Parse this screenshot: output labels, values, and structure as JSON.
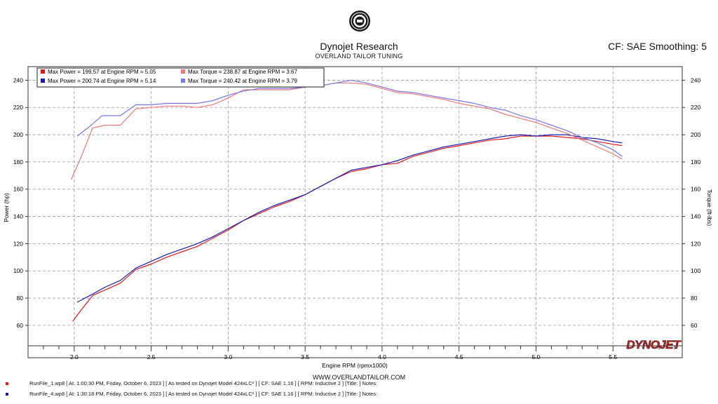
{
  "header": {
    "title": "Dynojet Research",
    "subtitle": "OVERLAND TAILOR TUNING",
    "cf_label": "CF: SAE Smoothing: 5"
  },
  "footer": {
    "url": "WWW.OVERLANDTAILOR.COM",
    "brand": "DYNOJET",
    "runs": [
      {
        "text": "RunFile_1.wp8 [ At: 1:00:30 PM, Friday, October 6, 2023 ] [ As tested on Dynojet Model 424xLC² ] [ CF: SAE 1.16 ] [ RPM: Inductive 2 ] [Title: ]  Notes:",
        "color": "#e01818"
      },
      {
        "text": "RunFile_4.wp8 [ At: 1:30:18 PM, Friday, October 6, 2023 ] [ As tested on Dynojet Model 424xLC² ] [ CF: SAE 1.16 ] [ RPM: Inductive 2 ] [Title: ]  Notes:",
        "color": "#1a1ab8"
      }
    ]
  },
  "colors": {
    "power_run1": "#e01818",
    "power_run2": "#1a1ab8",
    "torque_run1": "#f07878",
    "torque_run2": "#7878e8",
    "grid": "#9a9a9a",
    "brand_red": "#d42020"
  },
  "chart_data": {
    "type": "line",
    "title": "Dynojet Research",
    "subtitle": "OVERLAND TAILOR TUNING",
    "xlabel": "Engine RPM (rpmx1000)",
    "ylabel": "Power (hp)",
    "y2label": "Torque (ft-lbs)",
    "xlim": [
      1.7,
      5.95
    ],
    "ylim": [
      45,
      250
    ],
    "y2lim": [
      45,
      250
    ],
    "xticks": [
      "2.0",
      "2.5",
      "3.0",
      "3.5",
      "4.0",
      "4.5",
      "5.0",
      "5.5"
    ],
    "yticks": [
      "60",
      "80",
      "100",
      "120",
      "140",
      "160",
      "180",
      "200",
      "220",
      "240"
    ],
    "grid": true,
    "legend": {
      "position": "top-left",
      "entries": [
        {
          "label": "Max Power = 199.57 at Engine RPM = 5.05",
          "color": "#e01818"
        },
        {
          "label": "Max Torque = 238.87 at Engine RPM = 3.67",
          "color": "#f07878"
        },
        {
          "label": "Max Power = 200.74 at Engine RPM = 5.14",
          "color": "#1a1ab8"
        },
        {
          "label": "Max Torque = 240.42 at Engine RPM = 3.79",
          "color": "#7878e8"
        }
      ]
    },
    "series": [
      {
        "axis": "left",
        "color": "#e01818",
        "x": [
          1.99,
          2.05,
          2.12,
          2.2,
          2.3,
          2.4,
          2.5,
          2.6,
          2.7,
          2.8,
          2.9,
          3.0,
          3.1,
          3.2,
          3.3,
          3.4,
          3.5,
          3.6,
          3.7,
          3.8,
          3.9,
          4.0,
          4.1,
          4.2,
          4.3,
          4.4,
          4.5,
          4.6,
          4.7,
          4.8,
          4.9,
          5.0,
          5.1,
          5.2,
          5.3,
          5.4,
          5.5,
          5.56
        ],
        "y": [
          63,
          72,
          82,
          86,
          91,
          101,
          105,
          110,
          114,
          118,
          124,
          130,
          137,
          142,
          147,
          151,
          156,
          162,
          168,
          173,
          175,
          178,
          179,
          184,
          187,
          190,
          192,
          194,
          196,
          197,
          199,
          199,
          199,
          198,
          197,
          195,
          193,
          192
        ]
      },
      {
        "axis": "left",
        "color": "#1a1ab8",
        "x": [
          2.02,
          2.12,
          2.2,
          2.3,
          2.4,
          2.5,
          2.6,
          2.7,
          2.8,
          2.9,
          3.0,
          3.1,
          3.2,
          3.3,
          3.4,
          3.5,
          3.6,
          3.7,
          3.8,
          3.9,
          4.0,
          4.1,
          4.2,
          4.3,
          4.4,
          4.5,
          4.6,
          4.7,
          4.8,
          4.9,
          5.0,
          5.1,
          5.2,
          5.3,
          5.4,
          5.5,
          5.56
        ],
        "y": [
          77,
          83,
          88,
          93,
          102,
          107,
          112,
          116,
          120,
          125,
          131,
          137,
          143,
          148,
          152,
          156,
          162,
          168,
          174,
          176,
          178,
          181,
          185,
          188,
          191,
          193,
          195,
          197,
          199,
          200,
          199,
          200,
          200,
          198,
          197,
          195,
          194
        ]
      },
      {
        "axis": "right",
        "color": "#f07878",
        "x": [
          1.98,
          2.05,
          2.12,
          2.2,
          2.3,
          2.4,
          2.5,
          2.6,
          2.7,
          2.8,
          2.9,
          3.0,
          3.1,
          3.2,
          3.3,
          3.4,
          3.5,
          3.6,
          3.7,
          3.8,
          3.9,
          4.0,
          4.1,
          4.2,
          4.3,
          4.4,
          4.5,
          4.6,
          4.7,
          4.8,
          4.9,
          5.0,
          5.1,
          5.2,
          5.3,
          5.4,
          5.5,
          5.56
        ],
        "y": [
          167,
          185,
          205,
          207,
          207,
          219,
          220,
          221,
          221,
          220,
          222,
          227,
          233,
          233,
          233,
          233,
          235,
          236,
          238,
          238,
          237,
          234,
          231,
          230,
          228,
          226,
          223,
          221,
          219,
          215,
          212,
          209,
          205,
          201,
          196,
          191,
          186,
          182
        ]
      },
      {
        "axis": "right",
        "color": "#7878e8",
        "x": [
          2.02,
          2.1,
          2.18,
          2.3,
          2.4,
          2.5,
          2.6,
          2.7,
          2.8,
          2.9,
          3.0,
          3.1,
          3.2,
          3.3,
          3.4,
          3.5,
          3.6,
          3.7,
          3.8,
          3.9,
          4.0,
          4.1,
          4.2,
          4.3,
          4.4,
          4.5,
          4.6,
          4.7,
          4.8,
          4.9,
          5.0,
          5.1,
          5.2,
          5.3,
          5.4,
          5.5,
          5.56
        ],
        "y": [
          199,
          206,
          214,
          214,
          222,
          222,
          223,
          223,
          223,
          225,
          229,
          232,
          234,
          234,
          234,
          235,
          236,
          238,
          240,
          238,
          235,
          232,
          231,
          229,
          227,
          225,
          223,
          220,
          218,
          214,
          211,
          207,
          203,
          198,
          194,
          189,
          184
        ]
      }
    ]
  }
}
